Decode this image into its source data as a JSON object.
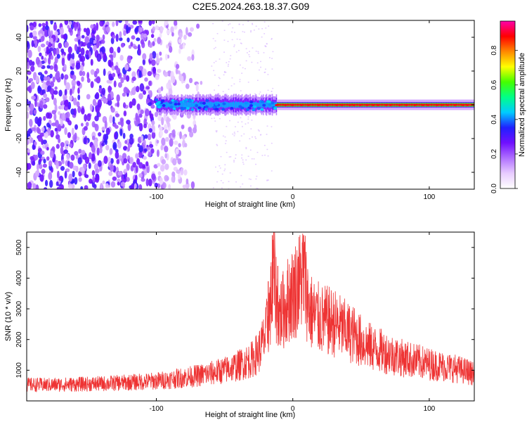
{
  "title": "C2E5.2024.263.18.37.G09",
  "colors": {
    "snr_line": "#ee3333",
    "background": "#ffffff",
    "axis": "#000000"
  },
  "chart_data": [
    {
      "type": "heatmap",
      "xlabel": "Height of straight line (km)",
      "ylabel": "Frequency (Hz)",
      "xlim": [
        -195,
        133
      ],
      "ylim": [
        -50,
        50
      ],
      "x_ticks": [
        -100,
        0,
        100
      ],
      "y_ticks": [
        -40,
        -20,
        0,
        20,
        40
      ],
      "colorbar": {
        "label": "Normalized spectral amplitude",
        "range": [
          0,
          0.97
        ],
        "ticks": [
          0.0,
          0.2,
          0.4,
          0.6,
          0.8
        ],
        "tick_labels": [
          "0.0",
          "0.2",
          "0.4",
          "0.6",
          "0.8"
        ],
        "colormap": [
          "#ffffff",
          "#e8ccff",
          "#b070ff",
          "#7010ff",
          "#2020ff",
          "#00ccff",
          "#00ff88",
          "#44ff00",
          "#ffff00",
          "#ff8800",
          "#ff0000",
          "#ff00aa"
        ]
      },
      "signal_band": {
        "center_frequency": 0,
        "noise_region_x": [
          -195,
          -100
        ],
        "band_start_x": -100,
        "strong_segment_x": [
          -12,
          130
        ]
      }
    },
    {
      "type": "line",
      "xlabel": "Height of straight line (km)",
      "ylabel": "SNR (10 * v/v)",
      "xlim": [
        -195,
        133
      ],
      "ylim": [
        0,
        5500
      ],
      "x_ticks": [
        -100,
        0,
        100
      ],
      "y_ticks": [
        1000,
        2000,
        3000,
        4000,
        5000
      ],
      "series": [
        {
          "x": [
            -195,
            -180,
            -160,
            -140,
            -120,
            -100,
            -90,
            -80,
            -70,
            -60,
            -50,
            -40,
            -30,
            -25,
            -20,
            -16,
            -14,
            -12,
            -10,
            -8,
            -5,
            -3,
            0,
            2,
            4,
            6,
            8,
            10,
            12,
            15,
            20,
            25,
            30,
            35,
            40,
            45,
            50,
            55,
            60,
            70,
            80,
            90,
            100,
            110,
            120,
            128,
            131
          ],
          "values": [
            530,
            520,
            540,
            560,
            600,
            650,
            700,
            760,
            820,
            900,
            1000,
            1150,
            1350,
            1600,
            2100,
            3200,
            4200,
            3300,
            2800,
            2900,
            3100,
            3350,
            3500,
            3650,
            3800,
            3950,
            4200,
            3600,
            3000,
            2800,
            2650,
            2600,
            2550,
            2400,
            2250,
            2150,
            1950,
            1800,
            1700,
            1550,
            1400,
            1300,
            1200,
            1120,
            1050,
            950,
            900
          ]
        }
      ],
      "spikes": [
        {
          "x": -15,
          "y": 5400
        },
        {
          "x": 8,
          "y": 5400
        },
        {
          "x": -18,
          "y": 3900
        },
        {
          "x": -11,
          "y": 4400
        },
        {
          "x": 4,
          "y": 4700
        },
        {
          "x": 128,
          "y": 1350
        }
      ]
    }
  ]
}
